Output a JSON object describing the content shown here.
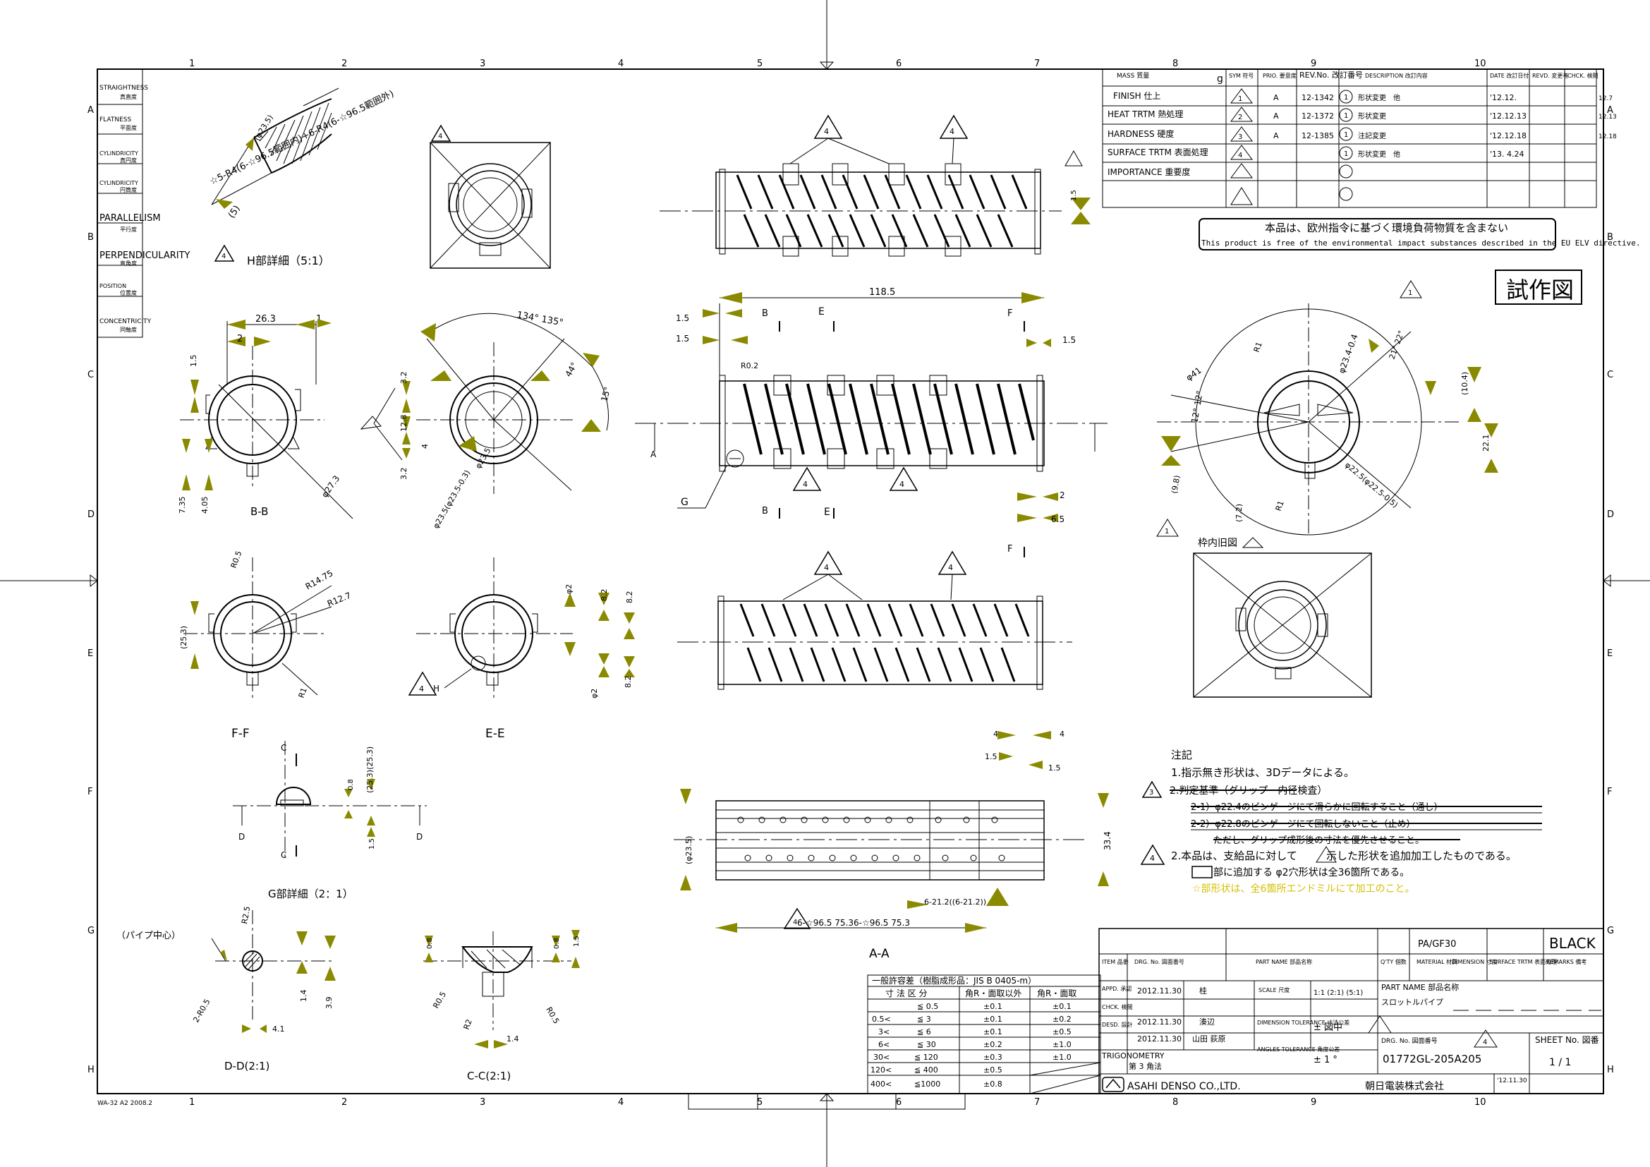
{
  "border": {
    "cols": [
      "1",
      "2",
      "3",
      "4",
      "5",
      "6",
      "7",
      "8",
      "9",
      "10"
    ],
    "rows": [
      "A",
      "B",
      "C",
      "D",
      "E",
      "F",
      "G",
      "H"
    ],
    "corner_code": "WA-32 A2 2008.2"
  },
  "legend": [
    {
      "en": "STRAIGHTNESS",
      "jp": "真直度"
    },
    {
      "en": "FLATNESS",
      "jp": "平面度"
    },
    {
      "en": "CYLINDRICITY",
      "jp": "真円度"
    },
    {
      "en": "CYLINDRICITY",
      "jp": "円筒度"
    },
    {
      "en": "PARALLELISM",
      "jp": "平行度"
    },
    {
      "en": "PERPENDICULARITY",
      "jp": "直角度"
    },
    {
      "en": "POSITION",
      "jp": "位置度"
    },
    {
      "en": "CONCENTRICITY",
      "jp": "同軸度"
    }
  ],
  "revision": {
    "headers": {
      "mass": "MASS 質量",
      "g": "g",
      "sym": "SYM 符号",
      "prio": "PRIO. 要意度",
      "revno": "REV.No. 改訂番号",
      "desc": "DESCRIPTION 改訂内容",
      "date": "DATE 改訂日付",
      "revd": "REVD. 変更者",
      "chkd": "CHCK. 検閲"
    },
    "left_labels": [
      "FINISH 仕上",
      "HEAT TRTM 熱処理",
      "HARDNESS 硬度",
      "SURFACE TRTM 表面処理",
      "IMPORTANCE 重要度"
    ],
    "rows": [
      {
        "sym": "1",
        "prio": "A",
        "revno": "12-1342",
        "num": "1",
        "desc": "形状変更　他",
        "date": "'12.12.",
        "side": "12.7"
      },
      {
        "sym": "2",
        "prio": "A",
        "revno": "12-1372",
        "num": "1",
        "desc": "形状変更",
        "date": "'12.12.13",
        "side": "12.13"
      },
      {
        "sym": "3",
        "prio": "A",
        "revno": "12-1385",
        "num": "1",
        "desc": "注記変更",
        "date": "'12.12.18",
        "side": "12.18"
      },
      {
        "sym": "4",
        "prio": "",
        "revno": "",
        "num": "1",
        "desc": "形状変更　他",
        "date": "'13. 4.24",
        "side": ""
      }
    ]
  },
  "elv": {
    "jp": "本品は、欧州指令に基づく環境負荷物質を含まない",
    "en": "This product is free of the environmental impact substances described in the EU ELV directive."
  },
  "prototype_stamp": "試作図",
  "views": {
    "h_detail": "H部詳細（5:1）",
    "bb": "B-B",
    "ff": "F-F",
    "ee": "E-E",
    "aa": "A-A",
    "g_detail": "G部詳細（2：1）",
    "dd": "D-D(2:1)",
    "cc": "C-C(2:1)",
    "pipe_center": "（パイプ中心）",
    "frame_old": "枠内旧図"
  },
  "dims": {
    "d_118_5": "118.5",
    "d_1_5": "1.5",
    "d_26_3": "26.3",
    "d_1": "1",
    "d_2": "2",
    "d_3_2": "3.2",
    "d_12_8": "12.8",
    "d_4": "4",
    "d_134": "134°  135°",
    "d_44": "44°",
    "d_15": "15°",
    "d_7_35": "7.35",
    "d_4_05": "4.05",
    "d_27_3": "φ27.3",
    "d_r0_2": "R0.2",
    "d_6_5": "6.5",
    "d_r14_75": "R14.75",
    "d_r12_7": "R12.7",
    "d_r0_5": "R0.5",
    "d_r1": "R1",
    "d_25_3": "(25.3)",
    "d_8_2": "8.2",
    "d_phi2": "φ2",
    "d_33_4": "33.4",
    "d_23_5p": "(φ23.5)",
    "d_962": "6-21.2((6-21.2))",
    "d_pitch": "6-☆96.5  75.36-☆96.5  75.3",
    "d_0_8": "0.8",
    "d_25_3b": "(25.3)(25.3)",
    "d_r2_5": "R2.5",
    "d_2r0_5": "2-R0.5",
    "d_1_4": "1.4",
    "d_3_9": "3.9",
    "d_4_1": "4.1",
    "d_r2": "R2",
    "d_h_sr": "☆5-R4(6-☆96.5範囲内)+6-R4(6-☆96.5範囲外)",
    "d_h23": "(φ23.5)",
    "d_h5": "(5)",
    "d_41": "φ41",
    "d_12deg": "12°  12°",
    "d_21deg": "21°  22°",
    "d_233": "φ23.4-0.4",
    "d_104": "(10.4)",
    "d_221": "22.1",
    "d_r1b": "R1",
    "d_72": "(7.2)",
    "d_225": "φ22.5(φ22.5-0.5)",
    "d_9_8": "(9.8)",
    "d_r1c": "R1",
    "d_23_5b": "φ23.5(φ23.5-0.3)",
    "d_g": "G"
  },
  "notes": {
    "title": "注記",
    "n1": "1.指示無き形状は、3Dデータによる。",
    "n2": "2.判定基準（グリップ　内径検査）",
    "n21": "2-1）φ22.4のピンゲージにて滑らかに回転すること（通し）",
    "n22": "2-2）φ22.8のピンゲージにて回転しないこと（止め）",
    "n23": "ただし、グリップ成形後の寸法を優先させること。",
    "n3a": "2.本品は、支給品に対して",
    "n3b": "示した形状を追加加工したものである。",
    "n3c": "部に追加する φ2穴形状は全36箇所である。",
    "n3d": "☆部形状は、全6箇所エンドミルにて加工のこと。"
  },
  "tolerance": {
    "title": "一般許容差（樹脂成形品：JIS B 0405-m）",
    "h1": "寸 法 区 分",
    "h2": "角R・面取以外",
    "h3": "角R・面取",
    "rows": [
      [
        "",
        "≦ 0.5",
        "±0.1",
        "±0.1"
      ],
      [
        "0.5<",
        "≦ 3",
        "±0.1",
        "±0.2"
      ],
      [
        "3<",
        "≦ 6",
        "±0.1",
        "±0.5"
      ],
      [
        "6<",
        "≦ 30",
        "±0.2",
        "±1.0"
      ],
      [
        "30<",
        "≦ 120",
        "±0.3",
        "±1.0"
      ],
      [
        "120<",
        "≦ 400",
        "±0.5",
        ""
      ],
      [
        "400<",
        "≦1000",
        "±0.8",
        ""
      ]
    ]
  },
  "title_block": {
    "material": "PA/GF30",
    "color": "BLACK",
    "item": "ITEM 品番",
    "drg": "DRG. No. 図面番号",
    "part": "PART NAME 部品名称",
    "qty": "Q'TY 個数",
    "mat_h": "MATERIAL 材質",
    "dim_h": "DIMENSION 寸度",
    "surf_h": "SURFACE TRTM 表面処理",
    "rem_h": "REMARKS 備考",
    "appd": "APPD. 承認",
    "chkd": "CHCK. 検閲",
    "desd": "DESD. 設計",
    "appd_date": "2012.11.30",
    "appd_name": "桂",
    "chkd_date": "2012.11.30",
    "chkd_name": "湊辺",
    "desd_date": "2012.11.30",
    "desd_name": "山田 荻原",
    "scale_h": "SCALE 尺度",
    "scale_v": "1:1 (2:1) (5:1)",
    "dimtol_h": "DIMENSION TOLERANCE 寸法公差",
    "dimtol_v": "± 図中",
    "angtol_h": "ANGLES TOLERANCE 角度公差",
    "angtol_v": "± 1 °",
    "trig": "TRIGONOMETRY",
    "trig_jp": "第 3 角法",
    "partname_h": "PART NAME 部品名称",
    "partname": "スロットルパイプ",
    "drgno_h": "DRG. No. 図面番号",
    "drgno": "01772GL-205A205",
    "sheet_h": "SHEET No. 図番",
    "sheet": "1 / 1",
    "company_en": "ASAHI DENSO CO.,LTD.",
    "company_jp": "朝日電装株式会社",
    "last_date": "'12.11.30"
  },
  "colors": {
    "olive": "#8a8a00",
    "yellow": "#d4c000",
    "line": "#000000"
  }
}
